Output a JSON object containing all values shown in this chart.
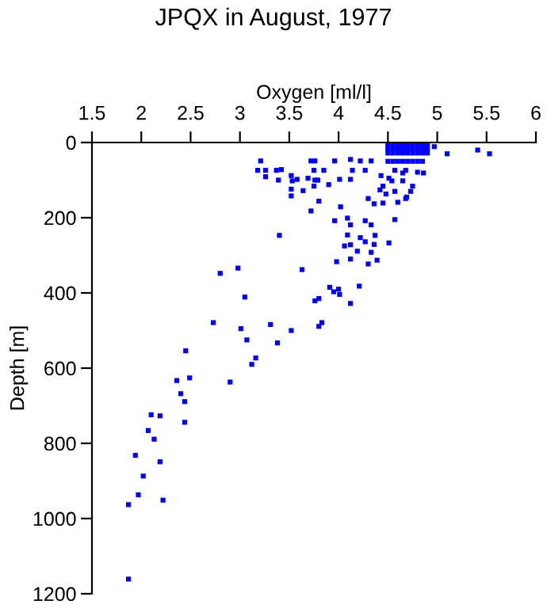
{
  "chart_data": {
    "type": "scatter",
    "title": "JPQX in August, 1977",
    "xlabel": "Oxygen [ml/l]",
    "ylabel": "Depth [m]",
    "xlim": [
      1.5,
      6
    ],
    "xticks": [
      1.5,
      2,
      2.5,
      3,
      3.5,
      4,
      4.5,
      5,
      5.5,
      6
    ],
    "ylim": [
      1200,
      0
    ],
    "yticks": [
      0,
      200,
      400,
      600,
      800,
      1000,
      1200
    ],
    "grid": false,
    "marker": "square",
    "series": [
      {
        "color": "#0000ff",
        "x": [
          4.5,
          4.55,
          4.6,
          4.65,
          4.7,
          4.75,
          4.8,
          4.85,
          4.9,
          4.5,
          4.55,
          4.6,
          4.65,
          4.7,
          4.75,
          4.8,
          4.85,
          4.9,
          4.5,
          4.55,
          4.6,
          4.65,
          4.7,
          4.75,
          4.8,
          4.85,
          4.9,
          4.5,
          4.55,
          4.6,
          4.65,
          4.7,
          4.75,
          4.8,
          4.85,
          4.9,
          4.5,
          4.55,
          4.6,
          4.65,
          4.7,
          4.75,
          4.8,
          4.85,
          4.97,
          5.1,
          5.41,
          5.53,
          3.21,
          3.18,
          3.26,
          3.26,
          3.37,
          3.39,
          3.42,
          3.52,
          3.53,
          3.58,
          3.52,
          3.52,
          3.64,
          3.69,
          3.72,
          3.76,
          3.75,
          3.76,
          3.79,
          3.75,
          3.8,
          3.72,
          3.85,
          3.9,
          3.96,
          4.01,
          4.02,
          3.96,
          4.12,
          4.14,
          4.12,
          4.09,
          4.12,
          4.22,
          4.27,
          4.33,
          4.3,
          4.36,
          4.27,
          4.33,
          4.09,
          4.22,
          4.12,
          4.19,
          4.06,
          4.27,
          4.37,
          4.36,
          4.33,
          4.39,
          4.3,
          3.98,
          4.12,
          4.57,
          4.51,
          4.43,
          4.45,
          4.48,
          4.54,
          4.57,
          4.6,
          4.65,
          4.68,
          4.8,
          4.86,
          4.73,
          4.75,
          4.69,
          4.57,
          4.51,
          4.42,
          4.45,
          4.65,
          4.68,
          3.4,
          2.8,
          2.98,
          3.63,
          3.05,
          3.91,
          3.95,
          4.0,
          4.01,
          4.12,
          4.21,
          3.8,
          3.76,
          2.73,
          3.01,
          3.31,
          3.52,
          3.07,
          3.38,
          3.16,
          3.12,
          2.45,
          2.36,
          2.49,
          2.9,
          2.4,
          2.44,
          2.44,
          2.1,
          2.19,
          2.07,
          2.13,
          1.94,
          2.19,
          2.02,
          1.97,
          2.22,
          1.87,
          1.87,
          3.83,
          3.8
        ],
        "values": [
          5,
          5,
          5,
          5,
          5,
          5,
          5,
          5,
          5,
          12,
          12,
          12,
          12,
          12,
          12,
          12,
          12,
          12,
          20,
          20,
          20,
          20,
          20,
          20,
          20,
          20,
          20,
          28,
          28,
          28,
          28,
          28,
          28,
          28,
          28,
          28,
          50,
          50,
          50,
          50,
          50,
          50,
          50,
          50,
          11,
          30,
          20,
          30,
          49,
          74,
          74,
          91,
          74,
          100,
          72,
          88,
          102,
          98,
          124,
          142,
          128,
          95,
          49,
          49,
          74,
          100,
          100,
          116,
          156,
          182,
          74,
          112,
          49,
          98,
          171,
          208,
          45,
          74,
          98,
          201,
          219,
          49,
          74,
          49,
          149,
          163,
          208,
          219,
          246,
          253,
          272,
          289,
          275,
          264,
          247,
          271,
          292,
          313,
          323,
          317,
          310,
          205,
          267,
          88,
          116,
          137,
          102,
          130,
          159,
          102,
          74,
          79,
          81,
          130,
          116,
          145,
          74,
          95,
          126,
          161,
          81,
          149,
          247,
          348,
          334,
          338,
          411,
          385,
          397,
          390,
          404,
          428,
          382,
          415,
          421,
          479,
          495,
          484,
          500,
          525,
          533,
          573,
          590,
          554,
          633,
          626,
          637,
          668,
          689,
          744,
          724,
          727,
          766,
          789,
          832,
          849,
          887,
          937,
          951,
          963,
          1161,
          479,
          489
        ]
      }
    ]
  }
}
